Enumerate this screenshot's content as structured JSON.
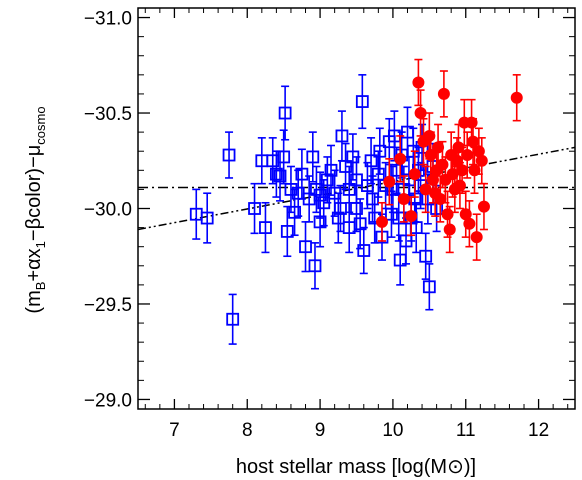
{
  "chart_data": {
    "type": "scatter",
    "xlabel": "host stellar mass [log(M⊙)]",
    "ylabel_parts": [
      "(m",
      "B",
      "+αx",
      "1",
      "−βcolor)−μ",
      "cosmo"
    ],
    "xlim": [
      6.5,
      12.5
    ],
    "ylim": [
      -28.95,
      -31.05
    ],
    "y_inverted": true,
    "x_ticks": [
      7,
      8,
      9,
      10,
      11,
      12
    ],
    "x_tick_labels": [
      "7",
      "8",
      "9",
      "10",
      "11",
      "12"
    ],
    "y_ticks": [
      -29.0,
      -29.5,
      -30.0,
      -30.5,
      -31.0
    ],
    "y_tick_labels": [
      "−29.0",
      "−29.5",
      "−30.0",
      "−30.5",
      "−31.0"
    ],
    "grid": false,
    "reference_lines": [
      {
        "style": "dash-dot",
        "kind": "horizontal",
        "y": -30.11
      },
      {
        "style": "dash-dot-dot",
        "kind": "linear",
        "x": [
          6.5,
          12.5
        ],
        "y": [
          -29.89,
          -30.32
        ]
      }
    ],
    "series": [
      {
        "marker": "open-square",
        "color": "#0000ff",
        "points": [
          [
            7.3,
            -29.97,
            0.13
          ],
          [
            7.45,
            -29.95,
            0.13
          ],
          [
            7.75,
            -30.28,
            0.12
          ],
          [
            7.8,
            -29.42,
            0.13
          ],
          [
            8.1,
            -30.0,
            0.13
          ],
          [
            8.2,
            -30.25,
            0.12
          ],
          [
            8.25,
            -29.9,
            0.13
          ],
          [
            8.35,
            -30.25,
            0.12
          ],
          [
            8.4,
            -30.18,
            0.12
          ],
          [
            8.45,
            -30.17,
            0.13
          ],
          [
            8.5,
            -30.27,
            0.14
          ],
          [
            8.52,
            -30.5,
            0.14
          ],
          [
            8.55,
            -29.88,
            0.13
          ],
          [
            8.6,
            -30.1,
            0.12
          ],
          [
            8.65,
            -29.98,
            0.12
          ],
          [
            8.7,
            -30.08,
            0.12
          ],
          [
            8.75,
            -30.18,
            0.13
          ],
          [
            8.8,
            -29.8,
            0.13
          ],
          [
            8.85,
            -30.05,
            0.12
          ],
          [
            8.9,
            -30.27,
            0.13
          ],
          [
            8.93,
            -29.7,
            0.12
          ],
          [
            8.95,
            -30.1,
            0.12
          ],
          [
            9.0,
            -30.07,
            0.12
          ],
          [
            9.0,
            -29.93,
            0.13
          ],
          [
            9.05,
            -30.03,
            0.12
          ],
          [
            9.1,
            -30.15,
            0.12
          ],
          [
            9.15,
            -30.2,
            0.13
          ],
          [
            9.2,
            -30.08,
            0.12
          ],
          [
            9.25,
            -29.95,
            0.13
          ],
          [
            9.28,
            -30.0,
            0.12
          ],
          [
            9.3,
            -30.38,
            0.13
          ],
          [
            9.35,
            -30.22,
            0.12
          ],
          [
            9.4,
            -30.1,
            0.12
          ],
          [
            9.4,
            -29.9,
            0.13
          ],
          [
            9.45,
            -30.27,
            0.12
          ],
          [
            9.5,
            -30.0,
            0.12
          ],
          [
            9.5,
            -30.15,
            0.12
          ],
          [
            9.55,
            -29.92,
            0.13
          ],
          [
            9.58,
            -30.56,
            0.14
          ],
          [
            9.6,
            -29.78,
            0.12
          ],
          [
            9.65,
            -30.12,
            0.12
          ],
          [
            9.7,
            -30.25,
            0.12
          ],
          [
            9.72,
            -30.05,
            0.12
          ],
          [
            9.75,
            -29.95,
            0.13
          ],
          [
            9.8,
            -30.18,
            0.12
          ],
          [
            9.82,
            -30.3,
            0.12
          ],
          [
            9.85,
            -29.85,
            0.12
          ],
          [
            9.9,
            -30.12,
            0.12
          ],
          [
            9.95,
            -30.35,
            0.12
          ],
          [
            9.98,
            -29.97,
            0.12
          ],
          [
            10.0,
            -30.1,
            0.12
          ],
          [
            10.02,
            -30.38,
            0.13
          ],
          [
            10.05,
            -30.2,
            0.12
          ],
          [
            10.08,
            -29.95,
            0.12
          ],
          [
            10.1,
            -29.73,
            0.13
          ],
          [
            10.12,
            -30.28,
            0.12
          ],
          [
            10.15,
            -30.1,
            0.12
          ],
          [
            10.18,
            -29.83,
            0.12
          ],
          [
            10.2,
            -30.4,
            0.13
          ],
          [
            10.22,
            -30.15,
            0.12
          ],
          [
            10.25,
            -29.95,
            0.12
          ],
          [
            10.28,
            -30.3,
            0.12
          ],
          [
            10.3,
            -30.05,
            0.12
          ],
          [
            10.32,
            -29.9,
            0.13
          ],
          [
            10.35,
            -30.2,
            0.12
          ],
          [
            10.38,
            -30.12,
            0.12
          ],
          [
            10.4,
            -30.32,
            0.12
          ],
          [
            10.45,
            -29.75,
            0.12
          ],
          [
            10.48,
            -30.05,
            0.13
          ],
          [
            10.5,
            -29.59,
            0.12
          ],
          [
            10.55,
            -30.22,
            0.12
          ],
          [
            10.6,
            -30.0,
            0.12
          ]
        ]
      },
      {
        "marker": "filled-circle",
        "color": "#ff0000",
        "points": [
          [
            9.85,
            -29.93,
            0.1
          ],
          [
            9.95,
            -30.14,
            0.12
          ],
          [
            10.1,
            -30.26,
            0.12
          ],
          [
            10.15,
            -30.05,
            0.12
          ],
          [
            10.25,
            -29.96,
            0.1
          ],
          [
            10.3,
            -30.18,
            0.12
          ],
          [
            10.35,
            -30.66,
            0.12
          ],
          [
            10.38,
            -30.5,
            0.12
          ],
          [
            10.42,
            -30.35,
            0.12
          ],
          [
            10.45,
            -30.1,
            0.12
          ],
          [
            10.5,
            -30.38,
            0.12
          ],
          [
            10.52,
            -30.28,
            0.12
          ],
          [
            10.55,
            -30.15,
            0.12
          ],
          [
            10.58,
            -30.08,
            0.12
          ],
          [
            10.6,
            -30.2,
            0.12
          ],
          [
            10.62,
            -30.32,
            0.12
          ],
          [
            10.65,
            -30.05,
            0.12
          ],
          [
            10.68,
            -30.23,
            0.12
          ],
          [
            10.7,
            -30.6,
            0.12
          ],
          [
            10.72,
            -30.15,
            0.12
          ],
          [
            10.75,
            -29.97,
            0.12
          ],
          [
            10.78,
            -29.89,
            0.12
          ],
          [
            10.8,
            -30.28,
            0.12
          ],
          [
            10.82,
            -30.18,
            0.12
          ],
          [
            10.85,
            -30.1,
            0.12
          ],
          [
            10.88,
            -30.25,
            0.12
          ],
          [
            10.9,
            -30.32,
            0.12
          ],
          [
            10.92,
            -30.12,
            0.12
          ],
          [
            10.95,
            -30.2,
            0.12
          ],
          [
            10.98,
            -30.45,
            0.12
          ],
          [
            11.0,
            -29.97,
            0.12
          ],
          [
            11.02,
            -30.28,
            0.12
          ],
          [
            11.05,
            -29.92,
            0.12
          ],
          [
            11.08,
            -30.45,
            0.12
          ],
          [
            11.1,
            -30.35,
            0.12
          ],
          [
            11.12,
            -30.2,
            0.12
          ],
          [
            11.15,
            -29.85,
            0.12
          ],
          [
            11.18,
            -30.3,
            0.12
          ],
          [
            11.22,
            -30.25,
            0.12
          ],
          [
            11.25,
            -30.01,
            0.12
          ],
          [
            11.7,
            -30.58,
            0.12
          ]
        ]
      }
    ]
  }
}
